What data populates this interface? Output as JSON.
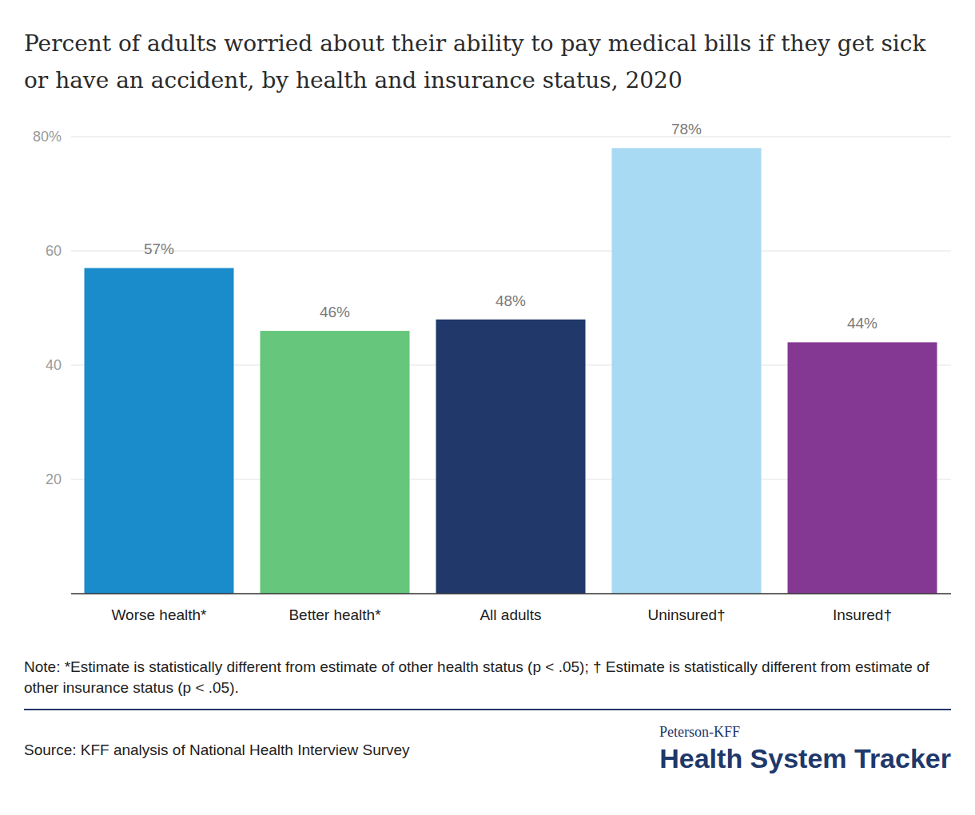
{
  "chart_data": {
    "type": "bar",
    "title": "Percent of adults worried about their ability to pay medical bills if they get sick or have an accident, by health and insurance status, 2020",
    "categories": [
      "Worse health*",
      "Better health*",
      "All adults",
      "Uninsured†",
      "Insured†"
    ],
    "values": [
      57,
      46,
      48,
      78,
      44
    ],
    "value_labels": [
      "57%",
      "46%",
      "48%",
      "78%",
      "44%"
    ],
    "colors": [
      "#1a8bcb",
      "#65c67c",
      "#20386a",
      "#a8daf3",
      "#843894"
    ],
    "ylim": [
      0,
      80
    ],
    "yticks": [
      20,
      40,
      60,
      {
        "value": 80,
        "label": "80%"
      }
    ],
    "grid": true,
    "data_labels": true,
    "note": "Note: *Estimate is statistically different from estimate of other health status (p < .05); † Estimate is statistically different from estimate of other insurance status (p < .05).",
    "source": "Source: KFF analysis of National Health Interview Survey",
    "logo": [
      "Peterson-KFF",
      "Health System Tracker"
    ]
  }
}
